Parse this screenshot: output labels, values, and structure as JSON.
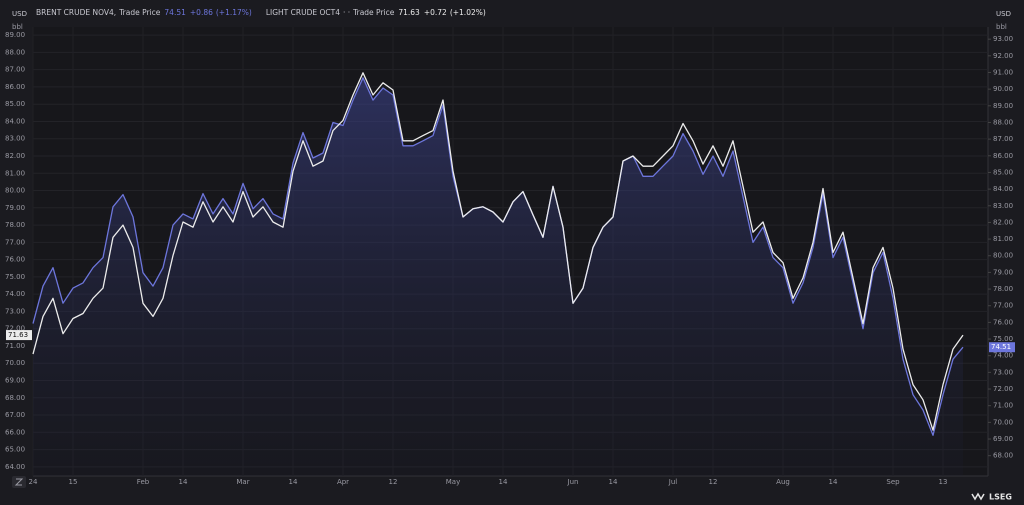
{
  "chart_data": {
    "type": "line",
    "brand": "LSEG",
    "y_unit": "USD",
    "y_unit_sub": "bbl",
    "categories": [
      "24",
      null,
      null,
      null,
      "15",
      null,
      null,
      null,
      null,
      null,
      null,
      "Feb",
      null,
      null,
      null,
      "14",
      null,
      null,
      null,
      null,
      null,
      "Mar",
      null,
      null,
      null,
      null,
      "14",
      null,
      null,
      null,
      null,
      "Apr",
      null,
      null,
      null,
      null,
      "12",
      null,
      null,
      null,
      null,
      null,
      "May",
      null,
      null,
      null,
      null,
      "14",
      null,
      null,
      null,
      null,
      null,
      null,
      "Jun",
      null,
      null,
      null,
      "14",
      null,
      null,
      null,
      null,
      null,
      "Jul",
      null,
      null,
      null,
      "12",
      null,
      null,
      null,
      null,
      null,
      null,
      "Aug",
      null,
      null,
      null,
      null,
      "14",
      null,
      null,
      null,
      null,
      null,
      "Sep",
      null,
      null,
      null,
      null,
      "13",
      null,
      null
    ],
    "series": [
      {
        "name": "BRENT CRUDE NOV4",
        "qualifier": ",",
        "field": "Trade Price",
        "last": 74.51,
        "change": "+0.86",
        "change_pct": "(+1.17%)",
        "color": "#6d76dc",
        "axis": "y2",
        "values": [
          75.93,
          78.18,
          79.28,
          77.15,
          78.06,
          78.37,
          79.28,
          79.89,
          82.94,
          83.67,
          82.33,
          78.98,
          78.18,
          79.28,
          81.84,
          82.51,
          82.21,
          83.73,
          82.51,
          83.43,
          82.51,
          84.34,
          82.82,
          83.43,
          82.51,
          82.21,
          85.56,
          87.39,
          85.87,
          86.17,
          88.0,
          87.82,
          89.34,
          90.68,
          89.34,
          90.07,
          89.65,
          86.6,
          86.6,
          86.9,
          87.21,
          89.04,
          84.77,
          82.33,
          82.82,
          82.94,
          82.63,
          82.02,
          83.24,
          83.85,
          82.45,
          81.11,
          84.16,
          81.72,
          77.15,
          78.06,
          80.5,
          81.72,
          82.33,
          85.68,
          85.99,
          84.77,
          84.77,
          85.38,
          85.99,
          87.33,
          86.29,
          84.89,
          85.99,
          84.77,
          86.29,
          83.55,
          80.8,
          81.72,
          79.89,
          79.28,
          77.15,
          78.37,
          80.5,
          83.73,
          79.89,
          81.11,
          78.37,
          75.62,
          78.98,
          80.2,
          77.45,
          73.79,
          71.66,
          70.74,
          69.22,
          71.66,
          73.79,
          74.51
        ]
      },
      {
        "name": "LIGHT CRUDE OCT4",
        "qualifier": "· ·",
        "field": "Trade Price",
        "last": 71.63,
        "change": "+0.72",
        "change_pct": "(+1.02%)",
        "color": "#ececec",
        "values": [
          70.53,
          72.71,
          73.76,
          71.71,
          72.59,
          72.88,
          73.76,
          74.35,
          77.29,
          78.0,
          76.71,
          73.47,
          72.71,
          73.76,
          76.24,
          78.18,
          77.88,
          79.35,
          78.18,
          79.06,
          78.18,
          79.94,
          78.47,
          79.06,
          78.18,
          77.88,
          81.12,
          82.88,
          81.41,
          81.71,
          83.47,
          84.06,
          85.53,
          86.82,
          85.53,
          86.24,
          85.82,
          82.88,
          82.88,
          83.18,
          83.47,
          85.24,
          81.12,
          78.47,
          78.94,
          79.06,
          78.76,
          78.18,
          79.35,
          79.94,
          78.59,
          77.29,
          80.24,
          77.88,
          73.47,
          74.35,
          76.71,
          77.88,
          78.47,
          81.71,
          82.0,
          81.41,
          81.41,
          82.0,
          82.59,
          83.88,
          82.88,
          81.53,
          82.59,
          81.41,
          82.88,
          80.24,
          77.59,
          78.18,
          76.41,
          75.82,
          73.76,
          74.94,
          77.0,
          80.12,
          76.41,
          77.59,
          74.94,
          72.29,
          75.53,
          76.71,
          74.35,
          70.82,
          68.76,
          67.88,
          66.12,
          68.76,
          70.82,
          71.63
        ]
      }
    ],
    "ylim": [
      63.47,
      89.47
    ],
    "yticks": [
      {
        "value": 64,
        "label": "64.00"
      },
      {
        "value": 65,
        "label": "65.00"
      },
      {
        "value": 66,
        "label": "66.00"
      },
      {
        "value": 67,
        "label": "67.00"
      },
      {
        "value": 68,
        "label": "68.00"
      },
      {
        "value": 69,
        "label": "69.00"
      },
      {
        "value": 70,
        "label": "70.00"
      },
      {
        "value": 71,
        "label": "71.00"
      },
      {
        "value": 72,
        "label": "72.00"
      },
      {
        "value": 73,
        "label": "73.00"
      },
      {
        "value": 74,
        "label": "74.00"
      },
      {
        "value": 75,
        "label": "75.00"
      },
      {
        "value": 76,
        "label": "76.00"
      },
      {
        "value": 77,
        "label": "77.00"
      },
      {
        "value": 78,
        "label": "78.00"
      },
      {
        "value": 79,
        "label": "79.00"
      },
      {
        "value": 80,
        "label": "80.00"
      },
      {
        "value": 81,
        "label": "81.00"
      },
      {
        "value": 82,
        "label": "82.00"
      },
      {
        "value": 83,
        "label": "83.00"
      },
      {
        "value": 84,
        "label": "84.00"
      },
      {
        "value": 85,
        "label": "85.00"
      },
      {
        "value": 86,
        "label": "86.00"
      },
      {
        "value": 87,
        "label": "87.00"
      },
      {
        "value": 88,
        "label": "88.00"
      },
      {
        "value": 89,
        "label": "89.00"
      }
    ],
    "y2lim": [
      66.78,
      93.73
    ],
    "y2ticks": [
      {
        "value": 68,
        "label": "68.00"
      },
      {
        "value": 69,
        "label": "69.00"
      },
      {
        "value": 70,
        "label": "70.00"
      },
      {
        "value": 71,
        "label": "71.00"
      },
      {
        "value": 72,
        "label": "72.00"
      },
      {
        "value": 73,
        "label": "73.00"
      },
      {
        "value": 74,
        "label": "74.00"
      },
      {
        "value": 75,
        "label": "75.00"
      },
      {
        "value": 76,
        "label": "76.00"
      },
      {
        "value": 77,
        "label": "77.00"
      },
      {
        "value": 78,
        "label": "78.00"
      },
      {
        "value": 79,
        "label": "79.00"
      },
      {
        "value": 80,
        "label": "80.00"
      },
      {
        "value": 81,
        "label": "81.00"
      },
      {
        "value": 82,
        "label": "82.00"
      },
      {
        "value": 83,
        "label": "83.00"
      },
      {
        "value": 84,
        "label": "84.00"
      },
      {
        "value": 85,
        "label": "85.00"
      },
      {
        "value": 86,
        "label": "86.00"
      },
      {
        "value": 87,
        "label": "87.00"
      },
      {
        "value": 88,
        "label": "88.00"
      },
      {
        "value": 89,
        "label": "89.00"
      },
      {
        "value": 90,
        "label": "90.00"
      },
      {
        "value": 91,
        "label": "91.00"
      },
      {
        "value": 92,
        "label": "92.00"
      },
      {
        "value": 93,
        "label": "93.00"
      }
    ],
    "grid": true
  }
}
